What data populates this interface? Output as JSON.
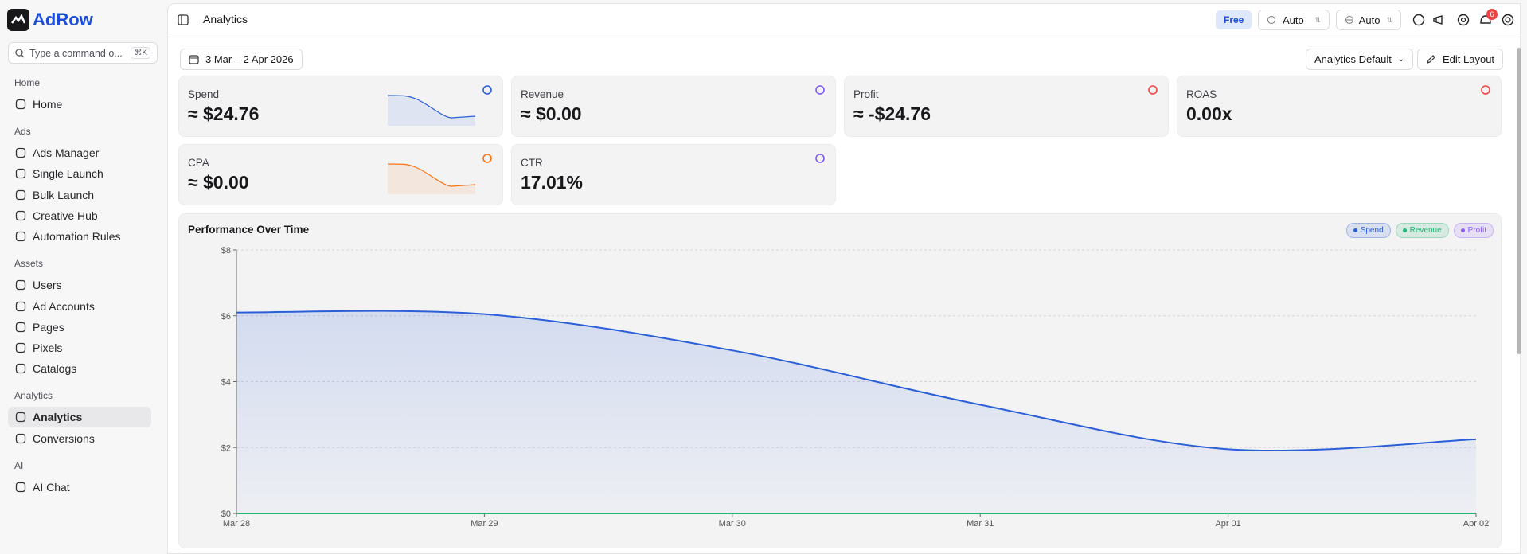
{
  "brand": "AdRow",
  "search": {
    "placeholder": "Type a command o...",
    "shortcut": "⌘K"
  },
  "sidebar": [
    {
      "section": "Home",
      "items": [
        "Home"
      ]
    },
    {
      "section": "Ads",
      "items": [
        "Ads Manager",
        "Single Launch",
        "Bulk Launch",
        "Creative Hub",
        "Automation Rules"
      ]
    },
    {
      "section": "Assets",
      "items": [
        "Users",
        "Ad Accounts",
        "Pages",
        "Pixels",
        "Catalogs"
      ]
    },
    {
      "section": "Analytics",
      "items": [
        "Analytics",
        "Conversions"
      ]
    },
    {
      "section": "AI",
      "items": [
        "AI Chat"
      ]
    }
  ],
  "header": {
    "title": "Analytics",
    "plan": "Free",
    "selects": [
      "Auto",
      "Auto"
    ],
    "notifications": "6"
  },
  "toolbar": {
    "date_range": "3 Mar – 2 Apr 2026",
    "view": "Analytics Default",
    "edit": "Edit Layout"
  },
  "kpis": [
    {
      "label": "Spend",
      "value": "≈ $24.76"
    },
    {
      "label": "Revenue",
      "value": "≈ $0.00"
    },
    {
      "label": "Profit",
      "value": "≈ -$24.76"
    },
    {
      "label": "ROAS",
      "value": "0.00x"
    },
    {
      "label": "CPA",
      "value": "≈ $0.00"
    },
    {
      "label": "CTR",
      "value": "17.01%"
    }
  ],
  "chart_data": {
    "type": "line",
    "title": "Performance Over Time",
    "categories": [
      "Mar 28",
      "Mar 29",
      "Mar 30",
      "Mar 31",
      "Apr 01",
      "Apr 02"
    ],
    "series": [
      {
        "name": "Spend",
        "color": "#2a5fd8",
        "values": [
          6.1,
          6.05,
          4.95,
          3.3,
          1.95,
          2.25
        ]
      },
      {
        "name": "Revenue",
        "color": "#22b573",
        "values": [
          0,
          0,
          0,
          0,
          0,
          0
        ]
      },
      {
        "name": "Profit",
        "color": "#8b5cf6",
        "values": [
          null,
          null,
          null,
          null,
          null,
          null
        ]
      }
    ],
    "ylim": [
      0,
      8
    ],
    "yticks": [
      {
        "value": 0,
        "label": "$0"
      },
      {
        "value": 2,
        "label": "$2"
      },
      {
        "value": 4,
        "label": "$4"
      },
      {
        "value": 6,
        "label": "$6"
      },
      {
        "value": 8,
        "label": "$8"
      }
    ],
    "grid": true,
    "legend": "top-right"
  }
}
